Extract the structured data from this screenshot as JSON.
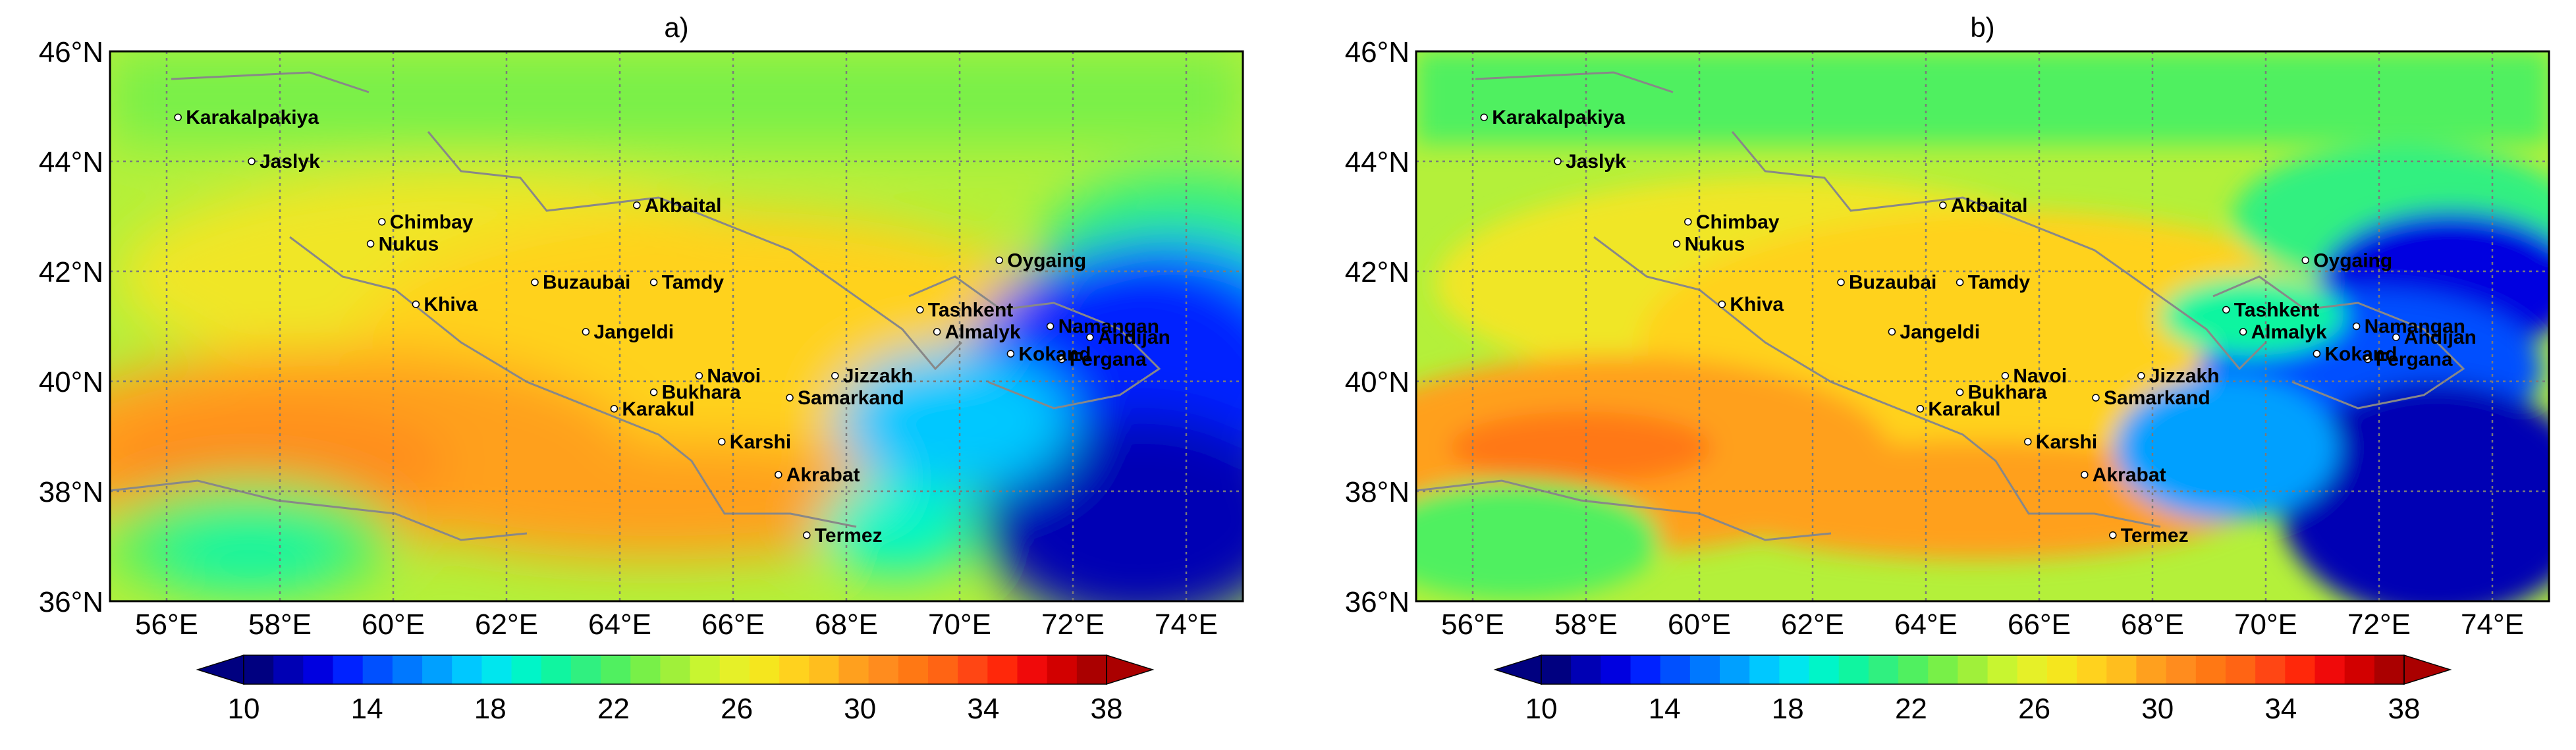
{
  "figure": {
    "panels": [
      {
        "title": "a)",
        "lat_labels": [
          "46°N",
          "44°N",
          "42°N",
          "40°N",
          "38°N",
          "36°N"
        ],
        "lon_labels": [
          "56°E",
          "58°E",
          "60°E",
          "62°E",
          "64°E",
          "66°E",
          "68°E",
          "70°E",
          "72°E",
          "74°E"
        ],
        "colorbar_labels": [
          "10",
          "14",
          "18",
          "22",
          "26",
          "30",
          "34",
          "38"
        ]
      },
      {
        "title": "b)",
        "lat_labels": [
          "46°N",
          "44°N",
          "42°N",
          "40°N",
          "38°N",
          "36°N"
        ],
        "lon_labels": [
          "56°E",
          "58°E",
          "60°E",
          "62°E",
          "64°E",
          "66°E",
          "68°E",
          "70°E",
          "72°E",
          "74°E"
        ],
        "colorbar_labels": [
          "10",
          "14",
          "18",
          "22",
          "26",
          "30",
          "34",
          "38"
        ]
      }
    ],
    "extent": {
      "lon": [
        55,
        75
      ],
      "lat": [
        36,
        46
      ]
    },
    "colorbar": {
      "range": [
        10,
        38
      ],
      "step": 1,
      "extend": "both",
      "colors": [
        "#000080",
        "#0000b4",
        "#0000e0",
        "#0022ff",
        "#0050ff",
        "#0078ff",
        "#00a0ff",
        "#00c8ff",
        "#00e6ee",
        "#00f5c8",
        "#10f5a0",
        "#30f080",
        "#50f060",
        "#78f048",
        "#a0f03a",
        "#c8f530",
        "#e6f028",
        "#f5e61e",
        "#ffd21e",
        "#ffbe1e",
        "#ffa01e",
        "#ff8c1e",
        "#ff7814",
        "#ff6414",
        "#ff4614",
        "#ff280a",
        "#f00a0a",
        "#d20000",
        "#aa0000"
      ]
    },
    "stations": [
      {
        "name": "Karakalpakiya",
        "lon": 56.2,
        "lat": 44.8
      },
      {
        "name": "Jaslyk",
        "lon": 57.5,
        "lat": 44.0
      },
      {
        "name": "Chimbay",
        "lon": 59.8,
        "lat": 42.9
      },
      {
        "name": "Nukus",
        "lon": 59.6,
        "lat": 42.5
      },
      {
        "name": "Khiva",
        "lon": 60.4,
        "lat": 41.4
      },
      {
        "name": "Akbaital",
        "lon": 64.3,
        "lat": 43.2
      },
      {
        "name": "Buzaubai",
        "lon": 62.5,
        "lat": 41.8
      },
      {
        "name": "Tamdy",
        "lon": 64.6,
        "lat": 41.8
      },
      {
        "name": "Jangeldi",
        "lon": 63.4,
        "lat": 40.9
      },
      {
        "name": "Navoi",
        "lon": 65.4,
        "lat": 40.1
      },
      {
        "name": "Bukhara",
        "lon": 64.6,
        "lat": 39.8
      },
      {
        "name": "Karakul",
        "lon": 63.9,
        "lat": 39.5
      },
      {
        "name": "Samarkand",
        "lon": 67.0,
        "lat": 39.7
      },
      {
        "name": "Jizzakh",
        "lon": 67.8,
        "lat": 40.1
      },
      {
        "name": "Karshi",
        "lon": 65.8,
        "lat": 38.9
      },
      {
        "name": "Akrabat",
        "lon": 66.8,
        "lat": 38.3
      },
      {
        "name": "Termez",
        "lon": 67.3,
        "lat": 37.2
      },
      {
        "name": "Tashkent",
        "lon": 69.3,
        "lat": 41.3
      },
      {
        "name": "Almalyk",
        "lon": 69.6,
        "lat": 40.9
      },
      {
        "name": "Oygaing",
        "lon": 70.7,
        "lat": 42.2
      },
      {
        "name": "Namangan",
        "lon": 71.6,
        "lat": 41.0
      },
      {
        "name": "Andijan",
        "lon": 72.3,
        "lat": 40.8
      },
      {
        "name": "Fergana",
        "lon": 71.8,
        "lat": 40.4
      },
      {
        "name": "Kokand",
        "lon": 70.9,
        "lat": 40.5
      }
    ]
  }
}
